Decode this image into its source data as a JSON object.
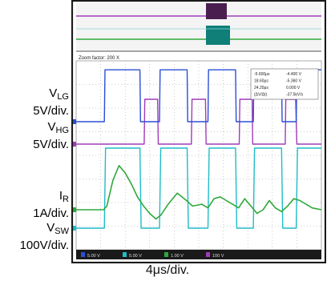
{
  "colors": {
    "vlg": "#2a4fd6",
    "vhg": "#a03bb8",
    "ir": "#2fa83a",
    "vsw": "#1fbcc8",
    "screen": "#ffffff",
    "frame": "#1a1a1a",
    "grid": "#9a9a9a",
    "overview_bg": "#f4f4f4",
    "status_bar": "#1a1a1a"
  },
  "labels": {
    "vlg": {
      "name": "V",
      "sub": "LG",
      "scale": "5V/div."
    },
    "vhg": {
      "name": "V",
      "sub": "HG",
      "scale": "5V/div."
    },
    "ir": {
      "name": "I",
      "sub": "R",
      "scale": "1A/div."
    },
    "vsw": {
      "name": "V",
      "sub": "SW",
      "scale": "100V/div."
    }
  },
  "timebase": "4μs/div.",
  "scope": {
    "zoom_label": "Zoom factor: 200 X",
    "cursor_readout": [
      [
        "-5.600μs",
        "-4.400 V"
      ],
      [
        "18.60μs",
        "-5.360 V"
      ],
      [
        "24.20μs",
        "0.000 V"
      ],
      [
        "(ΔV/Δt)",
        "-37.5kV/s"
      ]
    ],
    "status_items": [
      "5.00 V",
      "5.00 V",
      "1.00 V",
      "100 V"
    ]
  },
  "chart_data": {
    "type": "line",
    "x_unit": "μs",
    "x_divisions": 10,
    "x_per_div": 4,
    "xlim": [
      0,
      40
    ],
    "y_divisions": 8,
    "series": [
      {
        "name": "VLG",
        "units_per_div": "5V/div.",
        "x": [
          0,
          4.6,
          4.7,
          10.4,
          10.5,
          13.6,
          13.7,
          18.1,
          18.2,
          21.5,
          21.6,
          26.0,
          26.1,
          28.9,
          29.0,
          33.5,
          33.6,
          35.9,
          36.0,
          40
        ],
        "y": [
          0,
          0,
          18,
          18,
          0,
          0,
          18,
          18,
          0,
          0,
          18,
          18,
          0,
          0,
          18,
          18,
          0,
          0,
          18,
          18
        ]
      },
      {
        "name": "VHG",
        "units_per_div": "5V/div.",
        "x": [
          0,
          11.1,
          11.2,
          13.3,
          13.4,
          18.8,
          18.9,
          21.1,
          21.2,
          26.6,
          26.7,
          28.7,
          28.8,
          34.1,
          34.2,
          35.8,
          36.0,
          40
        ],
        "y": [
          0,
          0,
          10,
          10,
          0,
          0,
          10,
          10,
          0,
          0,
          10,
          10,
          0,
          0,
          10,
          10,
          0,
          0
        ]
      },
      {
        "name": "IR",
        "units_per_div": "1A/div.",
        "x": [
          0,
          4.5,
          5.0,
          6.0,
          7.0,
          8.0,
          9.0,
          10.0,
          11.0,
          12.0,
          13.0,
          13.8,
          15.0,
          16.5,
          18.0,
          19.0,
          20.5,
          21.5,
          22.5,
          23.5,
          24.5,
          25.5,
          26.5,
          27.5,
          28.5,
          29.5,
          30.5,
          31.5,
          32.5,
          33.5,
          34.5,
          35.5,
          36.5,
          37.5,
          38.5,
          40
        ],
        "y": [
          0,
          0,
          0.2,
          1.6,
          2.4,
          2.0,
          1.4,
          0.7,
          0.2,
          -0.2,
          -0.5,
          -0.3,
          0.3,
          0.9,
          0.5,
          0.2,
          0.3,
          0.1,
          0.6,
          0.7,
          0.5,
          0.3,
          0.1,
          0.6,
          0.2,
          -0.2,
          0.0,
          0.5,
          0.1,
          -0.1,
          0.2,
          0.6,
          0.5,
          0.3,
          0.1,
          0.0
        ]
      },
      {
        "name": "VSW",
        "units_per_div": "100V/div.",
        "x": [
          0,
          4.6,
          4.8,
          10.4,
          10.6,
          13.6,
          13.8,
          18.1,
          18.3,
          21.5,
          21.7,
          26.0,
          26.2,
          28.9,
          29.1,
          33.5,
          33.7,
          35.9,
          36.1,
          40
        ],
        "y": [
          0,
          0,
          400,
          400,
          0,
          0,
          400,
          400,
          0,
          0,
          400,
          400,
          0,
          0,
          400,
          400,
          0,
          0,
          400,
          400
        ]
      }
    ]
  }
}
